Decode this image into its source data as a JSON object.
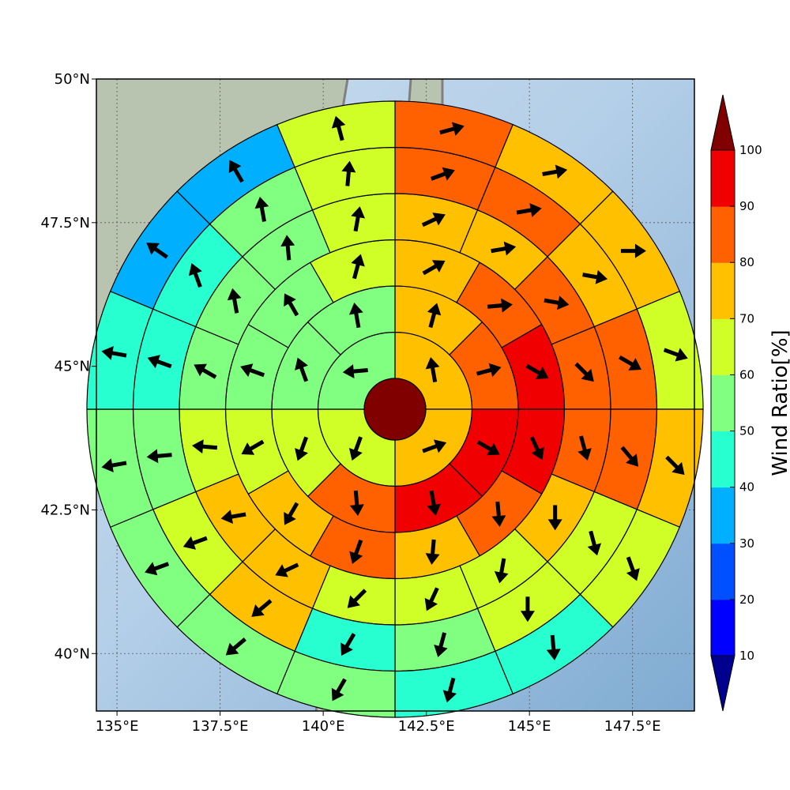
{
  "chart_data": {
    "type": "heatmap",
    "title": "",
    "projection": "polar sectors over map",
    "map": {
      "lon_range": [
        134.5,
        149.0
      ],
      "lat_range": [
        39.0,
        50.0
      ],
      "x_ticks": [
        {
          "value": 135.0,
          "label": "135°E"
        },
        {
          "value": 137.5,
          "label": "137.5°E"
        },
        {
          "value": 140.0,
          "label": "140°E"
        },
        {
          "value": 142.5,
          "label": "142.5°E"
        },
        {
          "value": 145.0,
          "label": "145°E"
        },
        {
          "value": 147.5,
          "label": "147.5°E"
        }
      ],
      "y_ticks": [
        {
          "value": 40.0,
          "label": "40°N"
        },
        {
          "value": 42.5,
          "label": "42.5°N"
        },
        {
          "value": 45.0,
          "label": "45°N"
        },
        {
          "value": 47.5,
          "label": "47.5°N"
        },
        {
          "value": 50.0,
          "label": "50°N"
        }
      ],
      "grid": true
    },
    "polar_grid": {
      "center": {
        "lon": 141.7,
        "lat": 44.5
      },
      "center_value": 100,
      "rings": 6,
      "sectors_per_ring": [
        4,
        8,
        12,
        16,
        16,
        16
      ]
    },
    "colorbar": {
      "label": "Wind Ratio[%]",
      "levels": [
        10,
        20,
        30,
        40,
        50,
        60,
        70,
        80,
        90,
        100
      ],
      "colors": [
        "#00008f",
        "#0000ff",
        "#0050ff",
        "#00b0ff",
        "#28ffd0",
        "#80ff80",
        "#d0ff28",
        "#ffc000",
        "#ff6000",
        "#f00000",
        "#800000"
      ],
      "extend": "both"
    },
    "sectors": [
      {
        "ring": 1,
        "values": [
          70,
          70,
          60,
          50
        ],
        "arrow_dir": [
          350,
          70,
          200,
          265
        ]
      },
      {
        "ring": 2,
        "values": [
          70,
          80,
          90,
          90,
          80,
          60,
          50,
          50
        ],
        "arrow_dir": [
          15,
          75,
          120,
          170,
          175,
          200,
          340,
          350
        ]
      },
      {
        "ring": 3,
        "values": [
          70,
          80,
          90,
          90,
          80,
          70,
          80,
          70,
          60,
          50,
          50,
          60
        ],
        "arrow_dir": [
          60,
          85,
          120,
          155,
          175,
          185,
          200,
          210,
          240,
          290,
          330,
          15
        ]
      },
      {
        "ring": 4,
        "values": [
          70,
          70,
          80,
          80,
          80,
          70,
          60,
          60,
          60,
          70,
          70,
          60,
          50,
          50,
          50,
          60
        ],
        "arrow_dir": [
          65,
          80,
          100,
          135,
          165,
          180,
          190,
          205,
          225,
          245,
          260,
          275,
          300,
          350,
          355,
          10
        ]
      },
      {
        "ring": 5,
        "values": [
          80,
          80,
          70,
          80,
          80,
          60,
          60,
          50,
          40,
          70,
          60,
          50,
          40,
          40,
          50,
          60
        ],
        "arrow_dir": [
          70,
          80,
          100,
          120,
          140,
          165,
          180,
          195,
          210,
          230,
          250,
          265,
          290,
          340,
          350,
          5
        ]
      },
      {
        "ring": 6,
        "values": [
          80,
          70,
          70,
          60,
          70,
          60,
          40,
          40,
          50,
          50,
          50,
          50,
          40,
          30,
          30,
          60
        ],
        "arrow_dir": [
          75,
          80,
          90,
          110,
          135,
          160,
          175,
          195,
          210,
          230,
          250,
          260,
          280,
          305,
          330,
          345
        ]
      }
    ]
  }
}
